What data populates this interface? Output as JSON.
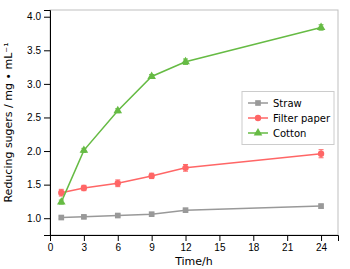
{
  "chart_data": {
    "type": "line",
    "x_label": "Time/h",
    "y_label": "Reducing sugers / mg • mL⁻¹",
    "x": [
      1,
      3,
      6,
      9,
      12,
      24
    ],
    "series": [
      {
        "name": "Straw",
        "color": "#999999",
        "marker": "square",
        "values": [
          1.01,
          1.02,
          1.04,
          1.06,
          1.12,
          1.18
        ],
        "errors": [
          0.02,
          0.02,
          0.02,
          0.02,
          0.02,
          0.03
        ]
      },
      {
        "name": "Filter paper",
        "color": "#FF6666",
        "marker": "circle",
        "values": [
          1.38,
          1.45,
          1.52,
          1.63,
          1.75,
          1.96
        ],
        "errors": [
          0.05,
          0.04,
          0.05,
          0.04,
          0.05,
          0.06
        ]
      },
      {
        "name": "Cotton",
        "color": "#66BB44",
        "marker": "triangle",
        "values": [
          1.24,
          2.01,
          2.6,
          3.11,
          3.33,
          3.84
        ],
        "errors": [
          0.03,
          0.03,
          0.03,
          0.03,
          0.04,
          0.04
        ]
      }
    ],
    "xlim": [
      0,
      25.5
    ],
    "ylim": [
      0.75,
      4.1
    ],
    "xticks": [
      0,
      3,
      6,
      9,
      12,
      15,
      18,
      21,
      24
    ],
    "yticks": [
      {
        "value": 1.0,
        "label": "1.0"
      },
      {
        "value": 1.5,
        "label": "1.5"
      },
      {
        "value": 2.0,
        "label": "2.0"
      },
      {
        "value": 2.5,
        "label": "2.5"
      },
      {
        "value": 3.0,
        "label": "3.0"
      },
      {
        "value": 3.5,
        "label": "3.5"
      },
      {
        "value": 4.0,
        "label": "4.0"
      }
    ],
    "grid": false,
    "legend": "right"
  }
}
